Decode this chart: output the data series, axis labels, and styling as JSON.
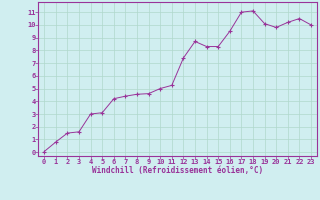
{
  "x": [
    0,
    1,
    2,
    3,
    4,
    5,
    6,
    7,
    8,
    9,
    10,
    11,
    12,
    13,
    14,
    15,
    16,
    17,
    18,
    19,
    20,
    21,
    22,
    23
  ],
  "y": [
    0.05,
    0.8,
    1.5,
    1.6,
    3.0,
    3.1,
    4.2,
    4.4,
    4.55,
    4.6,
    5.0,
    5.25,
    7.4,
    8.7,
    8.3,
    8.3,
    9.5,
    11.0,
    11.1,
    10.1,
    9.8,
    10.2,
    10.5,
    10.0
  ],
  "xlabel": "Windchill (Refroidissement éolien,°C)",
  "ylim": [
    -0.3,
    11.8
  ],
  "xlim": [
    -0.5,
    23.5
  ],
  "yticks": [
    0,
    1,
    2,
    3,
    4,
    5,
    6,
    7,
    8,
    9,
    10,
    11
  ],
  "xticks": [
    0,
    1,
    2,
    3,
    4,
    5,
    6,
    7,
    8,
    9,
    10,
    11,
    12,
    13,
    14,
    15,
    16,
    17,
    18,
    19,
    20,
    21,
    22,
    23
  ],
  "line_color": "#993399",
  "marker_color": "#993399",
  "bg_color": "#d0eef0",
  "grid_color": "#b0d8cc",
  "axis_color": "#993399",
  "label_color": "#993399",
  "tick_fontsize": 5.0,
  "xlabel_fontsize": 5.5
}
